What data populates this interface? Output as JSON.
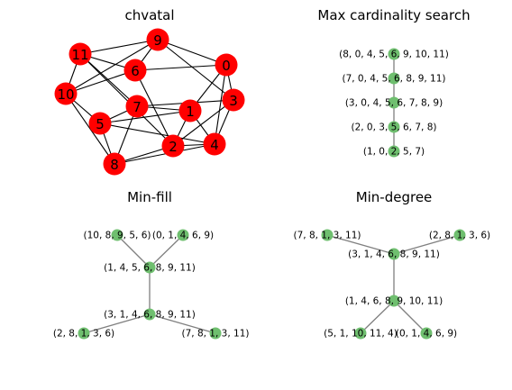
{
  "panels": [
    {
      "id": "chvatal",
      "title": "chvatal",
      "kind": "graph",
      "nodes": [
        "0",
        "1",
        "2",
        "3",
        "4",
        "5",
        "6",
        "7",
        "8",
        "9",
        "10",
        "11"
      ],
      "edges": [
        [
          "9",
          "11"
        ],
        [
          "9",
          "6"
        ],
        [
          "9",
          "0"
        ],
        [
          "9",
          "10"
        ],
        [
          "9",
          "3"
        ],
        [
          "11",
          "6"
        ],
        [
          "11",
          "10"
        ],
        [
          "11",
          "7"
        ],
        [
          "11",
          "2"
        ],
        [
          "6",
          "0"
        ],
        [
          "6",
          "10"
        ],
        [
          "6",
          "2"
        ],
        [
          "0",
          "3"
        ],
        [
          "0",
          "1"
        ],
        [
          "0",
          "4"
        ],
        [
          "10",
          "5"
        ],
        [
          "10",
          "8"
        ],
        [
          "7",
          "1"
        ],
        [
          "7",
          "3"
        ],
        [
          "7",
          "5"
        ],
        [
          "7",
          "8"
        ],
        [
          "1",
          "5"
        ],
        [
          "1",
          "2"
        ],
        [
          "1",
          "4"
        ],
        [
          "3",
          "2"
        ],
        [
          "3",
          "4"
        ],
        [
          "5",
          "4"
        ],
        [
          "5",
          "8"
        ],
        [
          "2",
          "8"
        ],
        [
          "2",
          "4"
        ],
        [
          "4",
          "8"
        ]
      ]
    },
    {
      "id": "max-cardinality-search",
      "title": "Max cardinality search",
      "kind": "tree",
      "nodes": [
        "(8, 0, 4, 5, 6, 9, 10, 11)",
        "(7, 0, 4, 5, 6, 8, 9, 11)",
        "(3, 0, 4, 5, 6, 7, 8, 9)",
        "(2, 0, 3, 5, 6, 7, 8)",
        "(1, 0, 2, 5, 7)"
      ],
      "edges": [
        [
          0,
          1
        ],
        [
          1,
          2
        ],
        [
          2,
          3
        ],
        [
          3,
          4
        ]
      ]
    },
    {
      "id": "min-fill",
      "title": "Min-fill",
      "kind": "tree",
      "nodes": [
        "(10, 8, 9, 5, 6)",
        "(0, 1, 4, 6, 9)",
        "(1, 4, 5, 6, 8, 9, 11)",
        "(3, 1, 4, 6, 8, 9, 11)",
        "(2, 8, 1, 3, 6)",
        "(7, 8, 1, 3, 11)"
      ],
      "edges": [
        [
          0,
          2
        ],
        [
          1,
          2
        ],
        [
          2,
          3
        ],
        [
          3,
          4
        ],
        [
          3,
          5
        ]
      ]
    },
    {
      "id": "min-degree",
      "title": "Min-degree",
      "kind": "tree",
      "nodes": [
        "(7, 8, 1, 3, 11)",
        "(2, 8, 1, 3, 6)",
        "(3, 1, 4, 6, 8, 9, 11)",
        "(1, 4, 6, 8, 9, 10, 11)",
        "(5, 1, 10, 11, 4)",
        "(0, 1, 4, 6, 9)"
      ],
      "edges": [
        [
          0,
          2
        ],
        [
          1,
          2
        ],
        [
          2,
          3
        ],
        [
          3,
          4
        ],
        [
          3,
          5
        ]
      ]
    }
  ]
}
